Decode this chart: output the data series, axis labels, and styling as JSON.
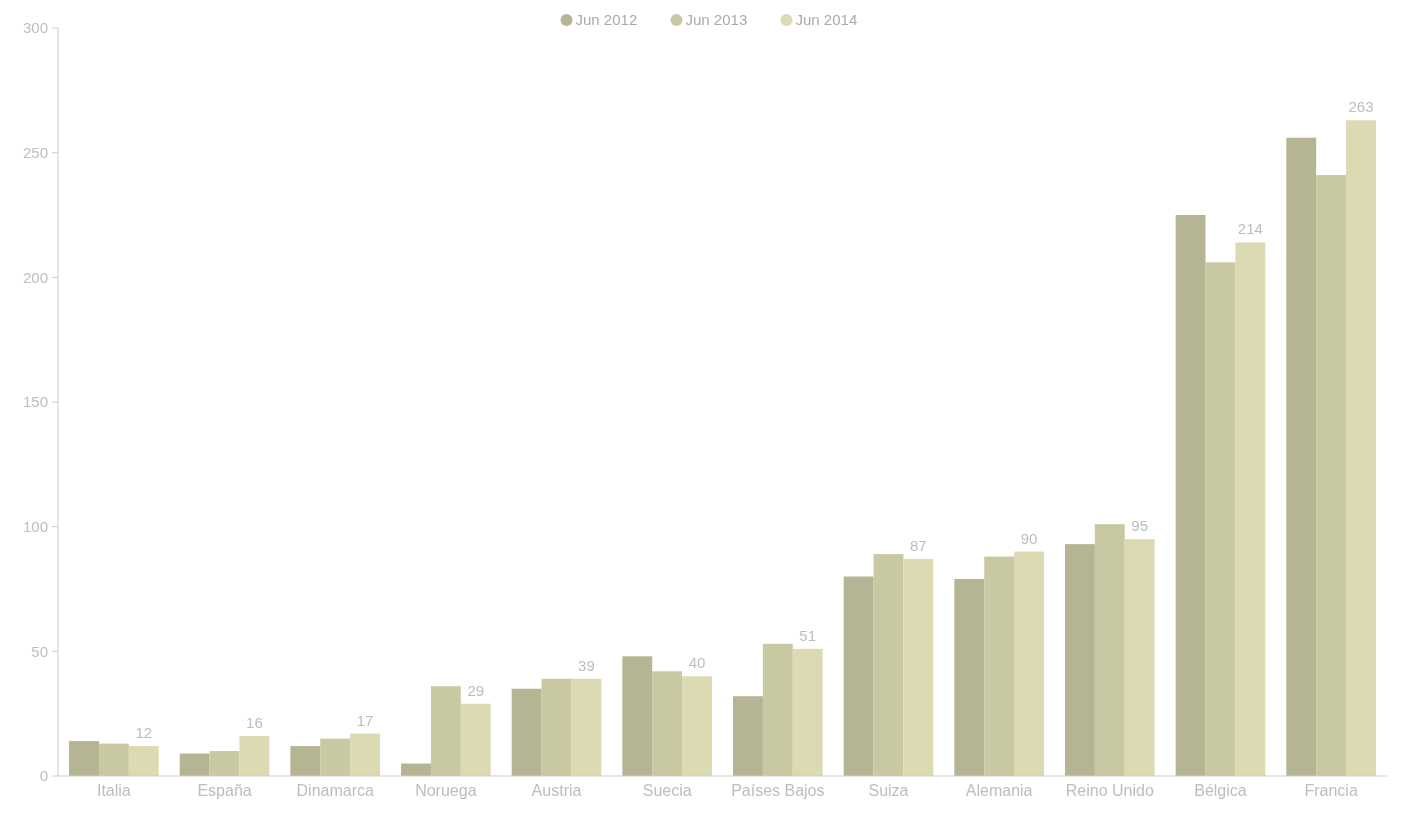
{
  "chart_data": {
    "type": "bar",
    "categories": [
      "Italia",
      "España",
      "Dinamarca",
      "Noruega",
      "Austria",
      "Suecia",
      "Países Bajos",
      "Suiza",
      "Alemania",
      "Reino Unido",
      "Bélgica",
      "Francia"
    ],
    "series": [
      {
        "name": "Jun 2012",
        "color": "#b5b593",
        "values": [
          14,
          9,
          12,
          5,
          35,
          48,
          32,
          80,
          79,
          93,
          225,
          256
        ]
      },
      {
        "name": "Jun 2013",
        "color": "#c8c8a2",
        "values": [
          13,
          10,
          15,
          36,
          39,
          42,
          53,
          89,
          88,
          101,
          206,
          241
        ]
      },
      {
        "name": "Jun 2014",
        "color": "#dcdab2",
        "values": [
          12,
          16,
          17,
          29,
          39,
          40,
          51,
          87,
          90,
          95,
          214,
          263
        ],
        "value_labels": [
          "12",
          "16",
          "17",
          "29",
          "39",
          "40",
          "51",
          "87",
          "90",
          "95",
          "214",
          "263"
        ]
      }
    ],
    "ylim": [
      0,
      300
    ],
    "yticks": [
      0,
      50,
      100,
      150,
      200,
      250,
      300
    ],
    "legend": "top",
    "grid": false
  }
}
